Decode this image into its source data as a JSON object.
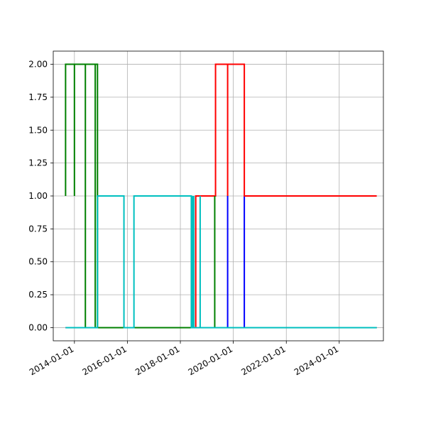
{
  "chart_data": {
    "type": "line",
    "title": "",
    "xlabel": "",
    "ylabel": "",
    "grid": true,
    "x_is_date": true,
    "xlim": [
      "2013-03-15",
      "2025-09-01"
    ],
    "ylim": [
      -0.1,
      2.1
    ],
    "x_ticks": [
      "2014-01-01",
      "2016-01-01",
      "2018-01-01",
      "2020-01-01",
      "2022-01-01",
      "2024-01-01"
    ],
    "x_tick_labels": [
      "2014-01-01",
      "2016-01-01",
      "2018-01-01",
      "2020-01-01",
      "2022-01-01",
      "2024-01-01"
    ],
    "y_ticks": [
      0.0,
      0.25,
      0.5,
      0.75,
      1.0,
      1.25,
      1.5,
      1.75,
      2.0
    ],
    "y_tick_labels": [
      "0.00",
      "0.25",
      "0.50",
      "0.75",
      "1.00",
      "1.25",
      "1.50",
      "1.75",
      "2.00"
    ],
    "series": [
      {
        "color": "#0000ff",
        "points": [
          [
            "2013-09-01",
            0
          ],
          [
            "2019-10-15",
            0
          ],
          [
            "2019-10-15",
            1
          ],
          [
            "2019-10-15",
            0
          ],
          [
            "2020-06-01",
            0
          ],
          [
            "2020-06-01",
            1
          ],
          [
            "2020-06-01",
            0
          ],
          [
            "2025-06-01",
            0
          ]
        ]
      },
      {
        "color": "#ff0000",
        "points": [
          [
            "2013-09-01",
            0
          ],
          [
            "2018-08-01",
            0
          ],
          [
            "2018-08-01",
            1
          ],
          [
            "2019-05-01",
            1
          ],
          [
            "2019-05-01",
            2
          ],
          [
            "2019-10-15",
            2
          ],
          [
            "2019-10-15",
            1
          ],
          [
            "2019-10-15",
            2
          ],
          [
            "2020-06-01",
            2
          ],
          [
            "2020-06-01",
            1
          ],
          [
            "2025-06-01",
            1
          ]
        ]
      },
      {
        "color": "#008000",
        "points": [
          [
            "2013-09-01",
            1
          ],
          [
            "2013-09-01",
            2
          ],
          [
            "2014-01-01",
            2
          ],
          [
            "2014-01-01",
            1
          ],
          [
            "2014-01-01",
            2
          ],
          [
            "2014-06-01",
            2
          ],
          [
            "2014-06-01",
            0
          ],
          [
            "2014-06-01",
            2
          ],
          [
            "2014-10-15",
            2
          ],
          [
            "2014-10-15",
            0
          ],
          [
            "2014-10-15",
            2
          ],
          [
            "2014-11-15",
            2
          ],
          [
            "2014-11-15",
            0
          ],
          [
            "2019-04-20",
            0
          ],
          [
            "2019-04-20",
            1
          ],
          [
            "2019-04-20",
            0
          ],
          [
            "2025-06-01",
            0
          ]
        ]
      },
      {
        "color": "#00bfbf",
        "points": [
          [
            "2013-09-01",
            0
          ],
          [
            "2014-11-15",
            0
          ],
          [
            "2014-11-15",
            1
          ],
          [
            "2015-11-15",
            1
          ],
          [
            "2015-11-15",
            0
          ],
          [
            "2016-04-01",
            0
          ],
          [
            "2016-04-01",
            1
          ],
          [
            "2018-06-01",
            1
          ],
          [
            "2018-06-01",
            0
          ],
          [
            "2018-06-20",
            0
          ],
          [
            "2018-06-20",
            1
          ],
          [
            "2018-06-20",
            0
          ],
          [
            "2018-07-05",
            0
          ],
          [
            "2018-07-05",
            1
          ],
          [
            "2018-07-05",
            0
          ],
          [
            "2018-10-01",
            0
          ],
          [
            "2018-10-01",
            1
          ],
          [
            "2018-10-01",
            0
          ],
          [
            "2025-06-01",
            0
          ]
        ]
      }
    ]
  }
}
